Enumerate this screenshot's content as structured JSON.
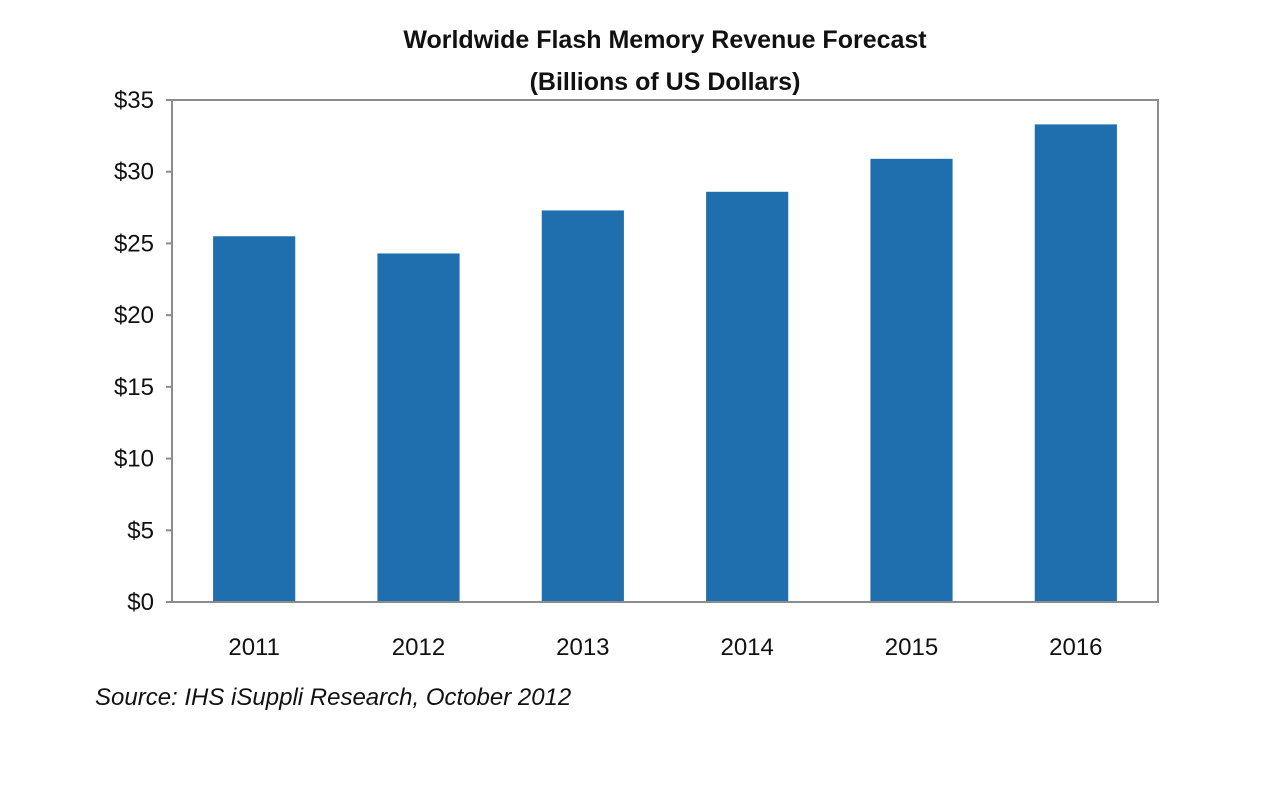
{
  "chart_data": {
    "type": "bar",
    "title": "Worldwide Flash Memory Revenue Forecast",
    "subtitle": "(Billions of US Dollars)",
    "categories": [
      "2011",
      "2012",
      "2013",
      "2014",
      "2015",
      "2016"
    ],
    "values": [
      25.5,
      24.3,
      27.3,
      28.6,
      30.9,
      33.3
    ],
    "ylim": [
      0,
      35
    ],
    "yticks": [
      0,
      5,
      10,
      15,
      20,
      25,
      30,
      35
    ],
    "ytick_labels": [
      "$0",
      "$5",
      "$10",
      "$15",
      "$20",
      "$25",
      "$30",
      "$35"
    ],
    "xlabel": "",
    "ylabel": "",
    "grid": false,
    "legend": "none",
    "bar_color": "#1f6fae",
    "frame_color": "#8c8c8c"
  },
  "source": "Source: IHS iSuppli Research, October 2012"
}
